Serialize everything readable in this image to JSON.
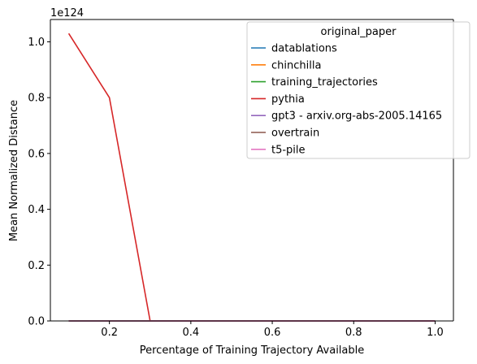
{
  "chart_data": {
    "type": "line",
    "xlabel": "Percentage of Training Trajectory Available",
    "ylabel": "Mean Normalized Distance",
    "offset_label": "1e124",
    "xlim": [
      0.055,
      1.045
    ],
    "ylim": [
      0,
      1.08
    ],
    "x_ticks": [
      0.2,
      0.4,
      0.6,
      0.8,
      1.0
    ],
    "x_tick_labels": [
      "0.2",
      "0.4",
      "0.6",
      "0.8",
      "1.0"
    ],
    "y_ticks": [
      0.0,
      0.2,
      0.4,
      0.6,
      0.8,
      1.0
    ],
    "y_tick_labels": [
      "0.0",
      "0.2",
      "0.4",
      "0.6",
      "0.8",
      "1.0"
    ],
    "grid": false,
    "legend": {
      "title": "original_paper",
      "placement": "upper right"
    },
    "series": [
      {
        "name": "datablations",
        "color": "#1f77b4",
        "x": [
          0.1,
          0.2,
          0.3,
          0.4,
          0.5,
          0.6,
          0.7,
          0.8,
          0.9,
          1.0
        ],
        "y": [
          0,
          0,
          0,
          0,
          0,
          0,
          0,
          0,
          0,
          0
        ]
      },
      {
        "name": "chinchilla",
        "color": "#ff7f0e",
        "x": [
          0.1,
          0.2,
          0.3,
          0.4,
          0.5,
          0.6,
          0.7,
          0.8,
          0.9,
          1.0
        ],
        "y": [
          0,
          0,
          0,
          0,
          0,
          0,
          0,
          0,
          0,
          0
        ]
      },
      {
        "name": "training_trajectories",
        "color": "#2ca02c",
        "x": [
          0.1,
          0.2,
          0.3,
          0.4,
          0.5,
          0.6,
          0.7,
          0.8,
          0.9,
          1.0
        ],
        "y": [
          0,
          0,
          0,
          0,
          0,
          0,
          0,
          0,
          0,
          0
        ]
      },
      {
        "name": "pythia",
        "color": "#d62728",
        "x": [
          0.1,
          0.2,
          0.3,
          0.4,
          0.5,
          0.6,
          0.7,
          0.8,
          0.9,
          1.0
        ],
        "y": [
          1.03,
          0.8,
          0.0,
          0,
          0,
          0,
          0,
          0,
          0,
          0
        ]
      },
      {
        "name": "gpt3 - arxiv.org-abs-2005.14165",
        "color": "#9467bd",
        "x": [
          0.1,
          0.2,
          0.3,
          0.4,
          0.5,
          0.6,
          0.7,
          0.8,
          0.9,
          1.0
        ],
        "y": [
          0,
          0,
          0,
          0,
          0,
          0,
          0,
          0,
          0,
          0
        ]
      },
      {
        "name": "overtrain",
        "color": "#8c564b",
        "x": [
          0.1,
          0.2,
          0.3,
          0.4,
          0.5,
          0.6,
          0.7,
          0.8,
          0.9,
          1.0
        ],
        "y": [
          0,
          0,
          0,
          0,
          0,
          0,
          0,
          0,
          0,
          0
        ]
      },
      {
        "name": "t5-pile",
        "color": "#e377c2",
        "x": [
          0.1,
          0.2,
          0.3,
          0.4,
          0.5,
          0.6,
          0.7,
          0.8,
          0.9,
          1.0
        ],
        "y": [
          0,
          0,
          0,
          0,
          0,
          0,
          0,
          0,
          0,
          0
        ]
      }
    ]
  }
}
